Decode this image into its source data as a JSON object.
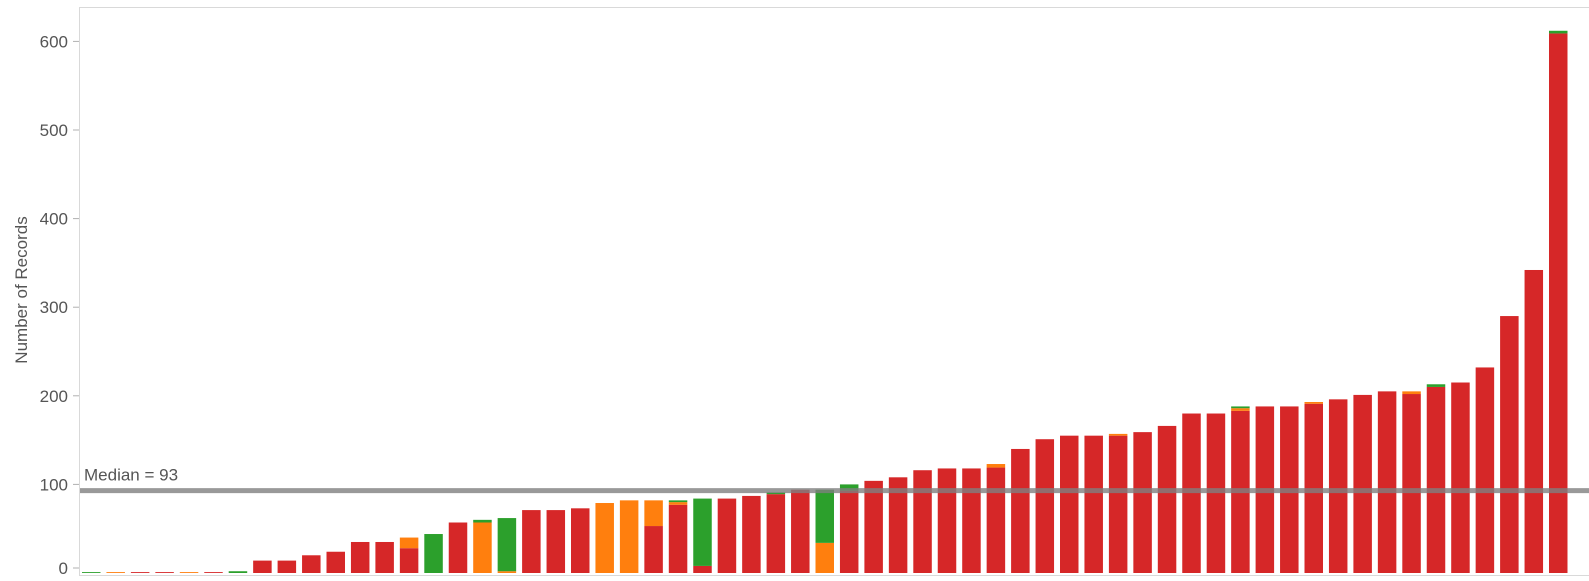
{
  "chart_data": {
    "type": "bar",
    "stacked": true,
    "ylabel": "Number of Records",
    "xlabel": "",
    "title": "",
    "ylim": [
      0,
      640
    ],
    "yticks": [
      0,
      100,
      200,
      300,
      400,
      500,
      600
    ],
    "grid": false,
    "legend": "none",
    "reference_line": {
      "label": "Median = 93",
      "value": 93
    },
    "colors": {
      "red": "#d62728",
      "orange": "#ff7f0e",
      "green": "#2ca02c",
      "ref_line": "#808080"
    },
    "series_stack_order": [
      "red",
      "orange",
      "green"
    ],
    "bars": [
      {
        "red": 0,
        "orange": 0,
        "green": 1
      },
      {
        "red": 0,
        "orange": 1,
        "green": 0
      },
      {
        "red": 1,
        "orange": 0,
        "green": 0
      },
      {
        "red": 1,
        "orange": 0,
        "green": 0
      },
      {
        "red": 0,
        "orange": 1,
        "green": 0
      },
      {
        "red": 1,
        "orange": 0,
        "green": 0
      },
      {
        "red": 0,
        "orange": 0,
        "green": 2
      },
      {
        "red": 14,
        "orange": 0,
        "green": 0
      },
      {
        "red": 14,
        "orange": 0,
        "green": 0
      },
      {
        "red": 20,
        "orange": 0,
        "green": 0
      },
      {
        "red": 24,
        "orange": 0,
        "green": 0
      },
      {
        "red": 35,
        "orange": 0,
        "green": 0
      },
      {
        "red": 35,
        "orange": 0,
        "green": 0
      },
      {
        "red": 28,
        "orange": 12,
        "green": 0
      },
      {
        "red": 0,
        "orange": 0,
        "green": 44
      },
      {
        "red": 57,
        "orange": 0,
        "green": 0
      },
      {
        "red": 0,
        "orange": 57,
        "green": 3
      },
      {
        "red": 0,
        "orange": 2,
        "green": 60
      },
      {
        "red": 71,
        "orange": 0,
        "green": 0
      },
      {
        "red": 71,
        "orange": 0,
        "green": 0
      },
      {
        "red": 73,
        "orange": 0,
        "green": 0
      },
      {
        "red": 0,
        "orange": 79,
        "green": 0
      },
      {
        "red": 0,
        "orange": 82,
        "green": 0
      },
      {
        "red": 53,
        "orange": 29,
        "green": 0
      },
      {
        "red": 77,
        "orange": 3,
        "green": 2
      },
      {
        "red": 8,
        "orange": 0,
        "green": 76
      },
      {
        "red": 84,
        "orange": 0,
        "green": 0
      },
      {
        "red": 87,
        "orange": 0,
        "green": 0
      },
      {
        "red": 89,
        "orange": 0,
        "green": 2
      },
      {
        "red": 94,
        "orange": 0,
        "green": 0
      },
      {
        "red": 0,
        "orange": 34,
        "green": 60
      },
      {
        "red": 93,
        "orange": 0,
        "green": 7
      },
      {
        "red": 104,
        "orange": 0,
        "green": 0
      },
      {
        "red": 108,
        "orange": 0,
        "green": 0
      },
      {
        "red": 116,
        "orange": 0,
        "green": 0
      },
      {
        "red": 118,
        "orange": 0,
        "green": 0
      },
      {
        "red": 118,
        "orange": 0,
        "green": 0
      },
      {
        "red": 119,
        "orange": 4,
        "green": 0
      },
      {
        "red": 140,
        "orange": 0,
        "green": 0
      },
      {
        "red": 151,
        "orange": 0,
        "green": 0
      },
      {
        "red": 155,
        "orange": 0,
        "green": 0
      },
      {
        "red": 155,
        "orange": 0,
        "green": 0
      },
      {
        "red": 155,
        "orange": 2,
        "green": 0
      },
      {
        "red": 159,
        "orange": 0,
        "green": 0
      },
      {
        "red": 166,
        "orange": 0,
        "green": 0
      },
      {
        "red": 180,
        "orange": 0,
        "green": 0
      },
      {
        "red": 180,
        "orange": 0,
        "green": 0
      },
      {
        "red": 183,
        "orange": 3,
        "green": 2
      },
      {
        "red": 188,
        "orange": 0,
        "green": 0
      },
      {
        "red": 188,
        "orange": 0,
        "green": 0
      },
      {
        "red": 191,
        "orange": 2,
        "green": 0
      },
      {
        "red": 196,
        "orange": 0,
        "green": 0
      },
      {
        "red": 201,
        "orange": 0,
        "green": 0
      },
      {
        "red": 205,
        "orange": 0,
        "green": 0
      },
      {
        "red": 202,
        "orange": 3,
        "green": 0
      },
      {
        "red": 210,
        "orange": 0,
        "green": 3
      },
      {
        "red": 215,
        "orange": 0,
        "green": 0
      },
      {
        "red": 232,
        "orange": 0,
        "green": 0
      },
      {
        "red": 290,
        "orange": 0,
        "green": 0
      },
      {
        "red": 342,
        "orange": 0,
        "green": 0
      },
      {
        "red": 609,
        "orange": 0,
        "green": 3
      }
    ]
  }
}
